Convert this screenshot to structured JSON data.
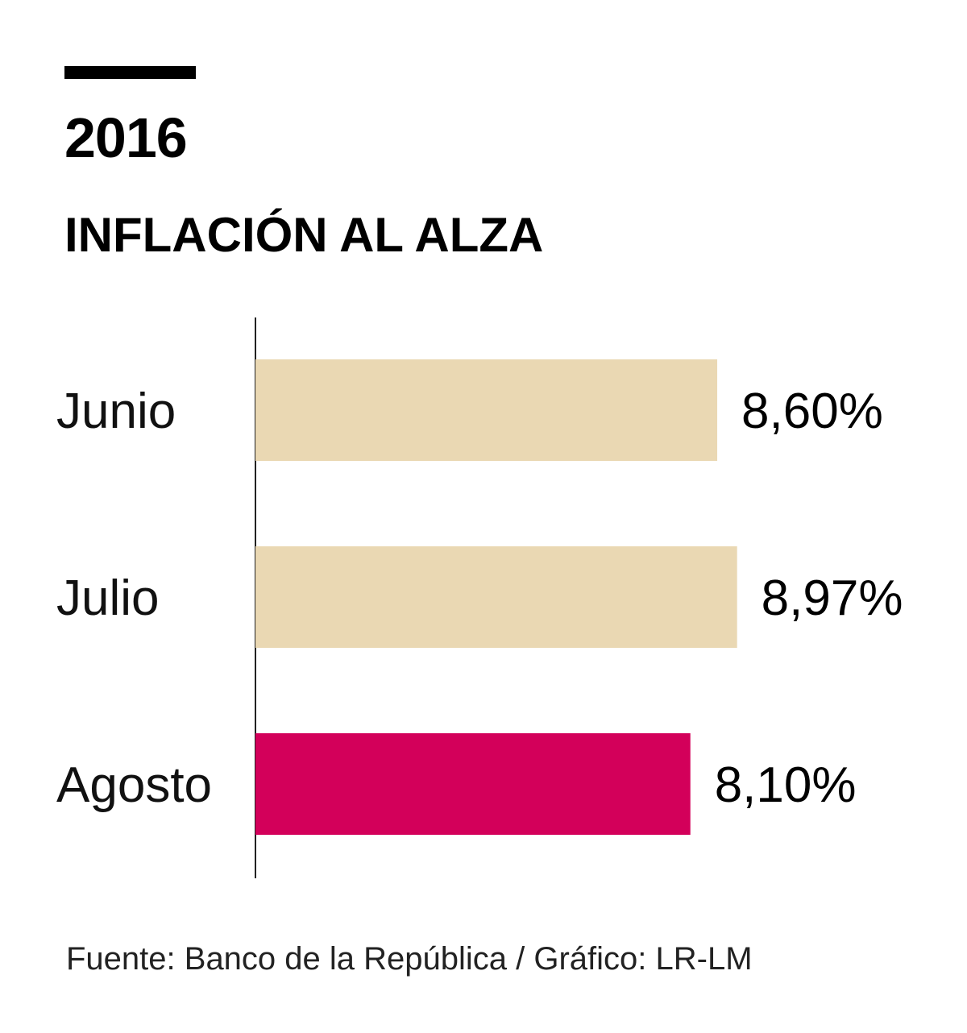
{
  "header": {
    "year": "2016",
    "title": "INFLACIÓN AL ALZA"
  },
  "chart_data": {
    "type": "bar",
    "orientation": "horizontal",
    "categories": [
      "Junio",
      "Julio",
      "Agosto"
    ],
    "values": [
      8.6,
      8.97,
      8.1
    ],
    "value_labels": [
      "8,60%",
      "8,97%",
      "8,10%"
    ],
    "colors": [
      "#EAD8B3",
      "#EAD8B3",
      "#D3005A"
    ],
    "xlim": [
      0,
      9.5
    ],
    "grid": false,
    "legend": "none"
  },
  "footer": {
    "source": "Fuente: Banco de la República / Gráfico: LR-LM"
  }
}
